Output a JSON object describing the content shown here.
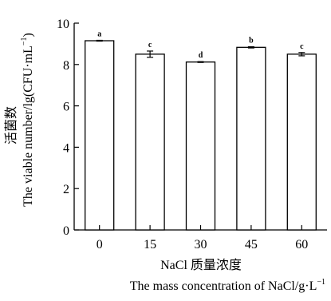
{
  "chart_data": {
    "type": "bar",
    "categories": [
      "0",
      "15",
      "30",
      "45",
      "60"
    ],
    "values": [
      9.15,
      8.5,
      8.12,
      8.83,
      8.5
    ],
    "errors": [
      0.02,
      0.15,
      0.02,
      0.03,
      0.08
    ],
    "significance_letters": [
      "a",
      "c",
      "d",
      "b",
      "c"
    ],
    "ylim": [
      0,
      10
    ],
    "yticks": [
      0,
      2,
      4,
      6,
      8,
      10
    ],
    "xlabel_cn": "NaCl 质量浓度",
    "xlabel_en": "The mass concentration of NaCl/g·L",
    "xlabel_en_sup": "−1",
    "ylabel_cn": "活菌数",
    "ylabel_en": "The viable number/lg(CFU·mL",
    "ylabel_en_sup": "−1",
    "ylabel_en_close": ")",
    "bar_fill": "#ffffff",
    "bar_stroke": "#000000",
    "grid": false,
    "legend": "none"
  }
}
